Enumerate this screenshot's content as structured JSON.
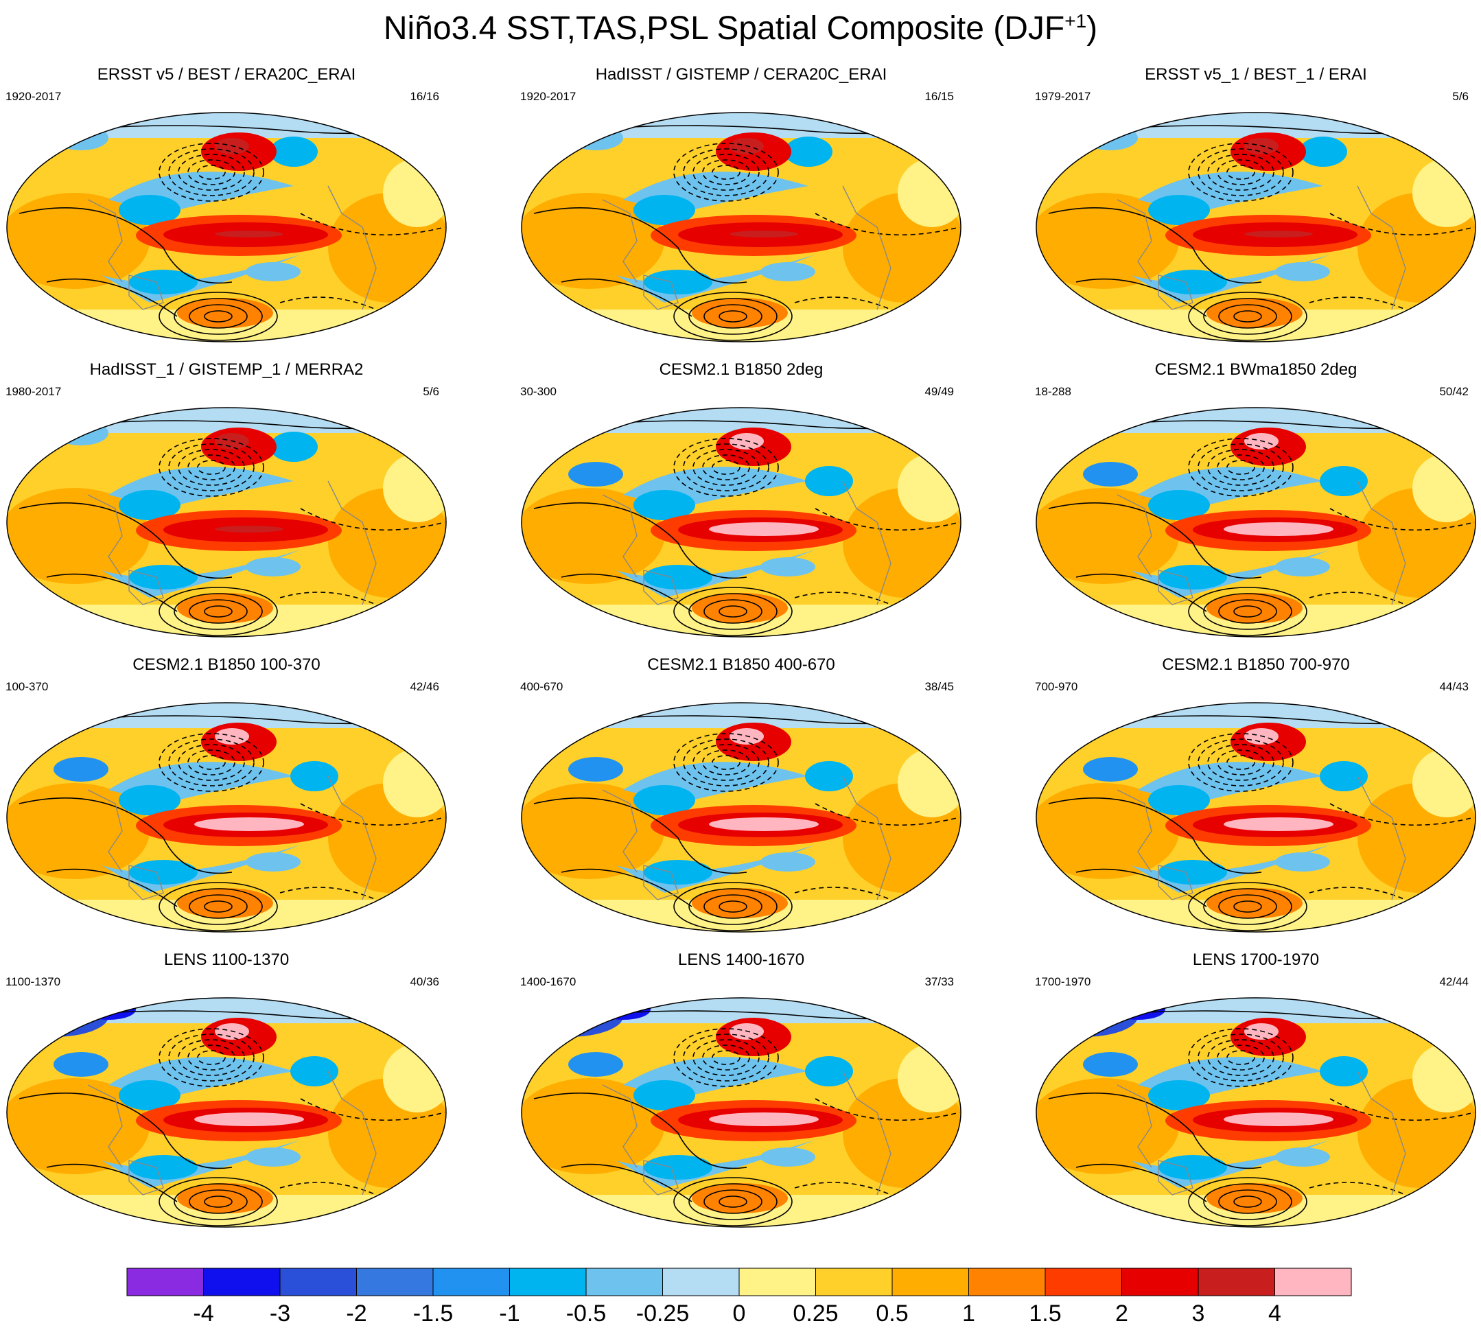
{
  "title": {
    "main": "Niño3.4 SST,TAS,PSL Spatial Composite (DJF",
    "sup": "+1",
    "close": ")"
  },
  "panels": [
    {
      "title": "ERSST v5 / BEST / ERA20C_ERAI",
      "years": "1920-2017",
      "count": "16/16"
    },
    {
      "title": "HadISST / GISTEMP / CERA20C_ERAI",
      "years": "1920-2017",
      "count": "16/15"
    },
    {
      "title": "ERSST v5_1 / BEST_1 / ERAI",
      "years": "1979-2017",
      "count": "5/6"
    },
    {
      "title": "HadISST_1 / GISTEMP_1 / MERRA2",
      "years": "1980-2017",
      "count": "5/6"
    },
    {
      "title": "CESM2.1 B1850 2deg",
      "years": "30-300",
      "count": "49/49"
    },
    {
      "title": "CESM2.1 BWma1850 2deg",
      "years": "18-288",
      "count": "50/42"
    },
    {
      "title": "CESM2.1 B1850 100-370",
      "years": "100-370",
      "count": "42/46"
    },
    {
      "title": "CESM2.1 B1850 400-670",
      "years": "400-670",
      "count": "38/45"
    },
    {
      "title": "CESM2.1 B1850 700-970",
      "years": "700-970",
      "count": "44/43"
    },
    {
      "title": "LENS 1100-1370",
      "years": "1100-1370",
      "count": "40/36"
    },
    {
      "title": "LENS 1400-1670",
      "years": "1400-1670",
      "count": "37/33"
    },
    {
      "title": "LENS 1700-1970",
      "years": "1700-1970",
      "count": "42/44"
    }
  ],
  "colorbar": {
    "colors": [
      "#8a2be2",
      "#1010ee",
      "#2a4fd8",
      "#3478e0",
      "#2192f0",
      "#00b4f0",
      "#6ec2ee",
      "#b4dcf2",
      "#fff287",
      "#ffd02a",
      "#ffad00",
      "#ff8200",
      "#ff3c00",
      "#e60000",
      "#c81e1e",
      "#ffb6c1"
    ],
    "labels": [
      "-4",
      "-3",
      "-2",
      "-1.5",
      "-1",
      "-0.5",
      "-0.25",
      "0",
      "0.25",
      "0.5",
      "1",
      "1.5",
      "2",
      "3",
      "4"
    ]
  }
}
